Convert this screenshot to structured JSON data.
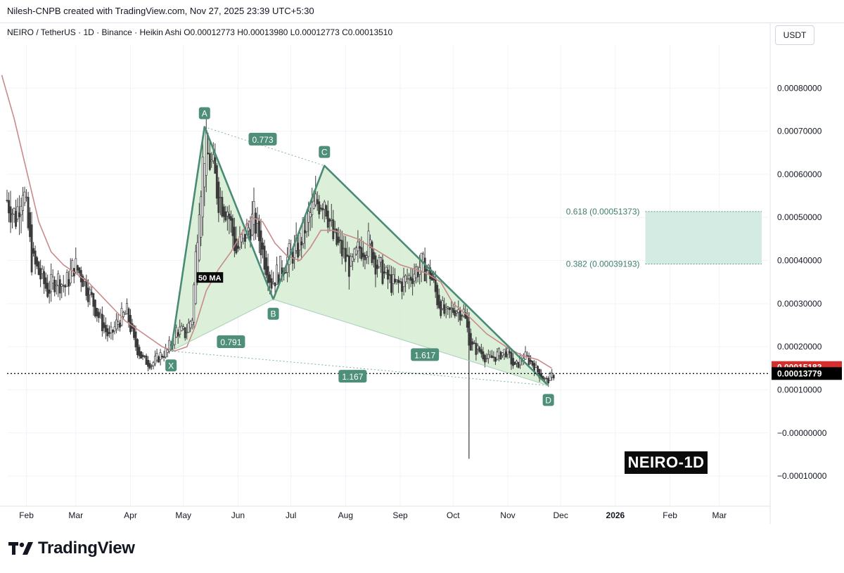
{
  "header": {
    "creator_line": "Nilesh-CNPB created with TradingView.com, Nov 27, 2025 23:39 UTC+5:30",
    "symbol_line": "NEIRO / TetherUS · 1D · Binance · Heikin Ashi  O0.00012773  H0.00013980  L0.00012773  C0.00013510",
    "currency": "USDT"
  },
  "brand": {
    "name": "TradingView",
    "logo_icon": "tradingview-logo-icon"
  },
  "badge": {
    "text": "NEIRO-1D"
  },
  "chart_data": {
    "type": "candlestick",
    "style": "Heikin Ashi",
    "symbol": "NEIRO / TetherUS",
    "timeframe": "1D",
    "exchange": "Binance",
    "ohlc": {
      "open": 0.00012773,
      "high": 0.0001398,
      "low": 0.00012773,
      "close": 0.0001351
    },
    "ylim": [
      -0.00017,
      0.0009
    ],
    "y_ticks": [
      {
        "value": 0.0008,
        "label": "0.00080000"
      },
      {
        "value": 0.0007,
        "label": "0.00070000"
      },
      {
        "value": 0.0006,
        "label": "0.00060000"
      },
      {
        "value": 0.0005,
        "label": "0.00050000"
      },
      {
        "value": 0.0004,
        "label": "0.00040000"
      },
      {
        "value": 0.0003,
        "label": "0.00030000"
      },
      {
        "value": 0.0002,
        "label": "0.00020000"
      },
      {
        "value": 0.0001,
        "label": "0.00010000"
      },
      {
        "value": 0.0,
        "label": "−0.00000000"
      },
      {
        "value": -0.0001,
        "label": "−0.00010000"
      }
    ],
    "x_ticks": [
      {
        "date": "2025-02-01",
        "label": "Feb",
        "bold": false
      },
      {
        "date": "2025-03-01",
        "label": "Mar",
        "bold": false
      },
      {
        "date": "2025-04-01",
        "label": "Apr",
        "bold": false
      },
      {
        "date": "2025-05-01",
        "label": "May",
        "bold": false
      },
      {
        "date": "2025-06-01",
        "label": "Jun",
        "bold": false
      },
      {
        "date": "2025-07-01",
        "label": "Jul",
        "bold": false
      },
      {
        "date": "2025-08-01",
        "label": "Aug",
        "bold": false
      },
      {
        "date": "2025-09-01",
        "label": "Sep",
        "bold": false
      },
      {
        "date": "2025-10-01",
        "label": "Oct",
        "bold": false
      },
      {
        "date": "2025-11-01",
        "label": "Nov",
        "bold": false
      },
      {
        "date": "2025-12-01",
        "label": "Dec",
        "bold": false
      },
      {
        "date": "2026-01-01",
        "label": "2026",
        "bold": true
      },
      {
        "date": "2026-02-01",
        "label": "Feb",
        "bold": false
      },
      {
        "date": "2026-03-01",
        "label": "Mar",
        "bold": false
      }
    ],
    "x_start": "2025-01-21",
    "x_end": "2026-03-29",
    "close_series": [
      [
        "2025-01-21",
        0.00054
      ],
      [
        "2025-01-26",
        0.0005
      ],
      [
        "2025-01-30",
        0.00058
      ],
      [
        "2025-02-04",
        0.0004
      ],
      [
        "2025-02-08",
        0.00037
      ],
      [
        "2025-02-13",
        0.00033
      ],
      [
        "2025-02-18",
        0.00036
      ],
      [
        "2025-02-23",
        0.00034
      ],
      [
        "2025-02-28",
        0.00039
      ],
      [
        "2025-03-05",
        0.00036
      ],
      [
        "2025-03-10",
        0.00031
      ],
      [
        "2025-03-15",
        0.00026
      ],
      [
        "2025-03-20",
        0.00022
      ],
      [
        "2025-03-25",
        0.00026
      ],
      [
        "2025-03-30",
        0.00028
      ],
      [
        "2025-04-03",
        0.00021
      ],
      [
        "2025-04-08",
        0.00017
      ],
      [
        "2025-04-13",
        0.00016
      ],
      [
        "2025-04-18",
        0.00018
      ],
      [
        "2025-04-22",
        0.00019
      ],
      [
        "2025-04-27",
        0.00024
      ],
      [
        "2025-05-02",
        0.00023
      ],
      [
        "2025-05-06",
        0.00027
      ],
      [
        "2025-05-10",
        0.00055
      ],
      [
        "2025-05-13",
        0.00066
      ],
      [
        "2025-05-17",
        0.00062
      ],
      [
        "2025-05-21",
        0.00055
      ],
      [
        "2025-05-26",
        0.00052
      ],
      [
        "2025-05-31",
        0.00042
      ],
      [
        "2025-06-05",
        0.00046
      ],
      [
        "2025-06-10",
        0.0005
      ],
      [
        "2025-06-15",
        0.00042
      ],
      [
        "2025-06-20",
        0.00035
      ],
      [
        "2025-06-25",
        0.00038
      ],
      [
        "2025-06-30",
        0.00041
      ],
      [
        "2025-07-05",
        0.00043
      ],
      [
        "2025-07-10",
        0.00049
      ],
      [
        "2025-07-15",
        0.00053
      ],
      [
        "2025-07-20",
        0.00055
      ],
      [
        "2025-07-25",
        0.00045
      ],
      [
        "2025-07-30",
        0.00042
      ],
      [
        "2025-08-04",
        0.00038
      ],
      [
        "2025-08-09",
        0.00043
      ],
      [
        "2025-08-14",
        0.00044
      ],
      [
        "2025-08-19",
        0.00039
      ],
      [
        "2025-08-24",
        0.00036
      ],
      [
        "2025-08-29",
        0.00034
      ],
      [
        "2025-09-03",
        0.00035
      ],
      [
        "2025-09-08",
        0.00037
      ],
      [
        "2025-09-13",
        0.00039
      ],
      [
        "2025-09-18",
        0.00037
      ],
      [
        "2025-09-22",
        0.00031
      ],
      [
        "2025-09-27",
        0.00027
      ],
      [
        "2025-10-02",
        0.00029
      ],
      [
        "2025-10-07",
        0.00028
      ],
      [
        "2025-10-11",
        0.0002
      ],
      [
        "2025-10-16",
        0.00019
      ],
      [
        "2025-10-21",
        0.00017
      ],
      [
        "2025-10-26",
        0.00018
      ],
      [
        "2025-10-31",
        0.00019
      ],
      [
        "2025-11-05",
        0.00015
      ],
      [
        "2025-11-10",
        0.00018
      ],
      [
        "2025-11-15",
        0.00016
      ],
      [
        "2025-11-20",
        0.00013
      ],
      [
        "2025-11-23",
        0.00012
      ],
      [
        "2025-11-27",
        0.000135
      ]
    ],
    "ma_series": [
      [
        "2025-01-18",
        0.00083
      ],
      [
        "2025-01-25",
        0.00073
      ],
      [
        "2025-02-01",
        0.00061
      ],
      [
        "2025-02-08",
        0.00049
      ],
      [
        "2025-02-15",
        0.00042
      ],
      [
        "2025-02-22",
        0.00039
      ],
      [
        "2025-03-01",
        0.00037
      ],
      [
        "2025-03-08",
        0.00035
      ],
      [
        "2025-03-15",
        0.00032
      ],
      [
        "2025-03-22",
        0.00029
      ],
      [
        "2025-03-29",
        0.00026
      ],
      [
        "2025-04-05",
        0.00024
      ],
      [
        "2025-04-12",
        0.00022
      ],
      [
        "2025-04-19",
        0.0002
      ],
      [
        "2025-04-26",
        0.00019
      ],
      [
        "2025-05-03",
        0.0002
      ],
      [
        "2025-05-08",
        0.00025
      ],
      [
        "2025-05-14",
        0.00033
      ],
      [
        "2025-05-21",
        0.00038
      ],
      [
        "2025-05-28",
        0.00042
      ],
      [
        "2025-06-04",
        0.00047
      ],
      [
        "2025-06-09",
        0.0005
      ],
      [
        "2025-06-15",
        0.00049
      ],
      [
        "2025-06-22",
        0.00044
      ],
      [
        "2025-06-29",
        0.00041
      ],
      [
        "2025-07-06",
        0.0004
      ],
      [
        "2025-07-12",
        0.00043
      ],
      [
        "2025-07-18",
        0.00047
      ],
      [
        "2025-07-25",
        0.00047
      ],
      [
        "2025-08-01",
        0.00046
      ],
      [
        "2025-08-08",
        0.00045
      ],
      [
        "2025-08-16",
        0.00043
      ],
      [
        "2025-08-24",
        0.00041
      ],
      [
        "2025-09-01",
        0.00039
      ],
      [
        "2025-09-09",
        0.00038
      ],
      [
        "2025-09-16",
        0.00037
      ],
      [
        "2025-09-24",
        0.00035
      ],
      [
        "2025-10-01",
        0.0003
      ],
      [
        "2025-10-10",
        0.00027
      ],
      [
        "2025-10-20",
        0.00023
      ],
      [
        "2025-10-31",
        0.0002
      ],
      [
        "2025-11-09",
        0.00018
      ],
      [
        "2025-11-18",
        0.00017
      ],
      [
        "2025-11-26",
        0.00015
      ]
    ],
    "spike_wick": {
      "date": "2025-10-10",
      "high": 0.00028,
      "low": -6e-05
    },
    "moving_average": {
      "label": "50 MA",
      "color": "#c98a8a"
    },
    "harmonic_pattern": {
      "points": [
        {
          "label": "X",
          "date": "2025-04-24",
          "price": 0.00019
        },
        {
          "label": "A",
          "date": "2025-05-13",
          "price": 0.00071
        },
        {
          "label": "B",
          "date": "2025-06-21",
          "price": 0.00031
        },
        {
          "label": "C",
          "date": "2025-07-20",
          "price": 0.00062
        },
        {
          "label": "D",
          "date": "2025-11-24",
          "price": 0.00011
        }
      ],
      "ratios": [
        {
          "text": "0.773",
          "date": "2025-06-15",
          "price": 0.00068
        },
        {
          "text": "0.791",
          "date": "2025-05-28",
          "price": 0.00021
        },
        {
          "text": "1.617",
          "date": "2025-09-15",
          "price": 0.00018
        },
        {
          "text": "1.167",
          "date": "2025-08-05",
          "price": 0.00013
        }
      ],
      "fill_color": "#d7edd5",
      "line_color": "#4a8b73"
    },
    "fib_zone": {
      "start_date": "2026-01-18",
      "end_date": "2026-03-25",
      "levels": [
        {
          "label": "0.618 (0.00051373)",
          "value": 0.00051373
        },
        {
          "label": "0.382 (0.00039193)",
          "value": 0.00039193
        }
      ],
      "color": "#cde7df"
    },
    "price_labels": [
      {
        "text": "0.00013779",
        "value": 0.00013779,
        "bg": "#000000",
        "fg": "#ffffff"
      },
      {
        "text": "0.00015183",
        "value": 0.00015183,
        "bg": "#d32f2f",
        "fg": "#ffffff"
      }
    ]
  }
}
